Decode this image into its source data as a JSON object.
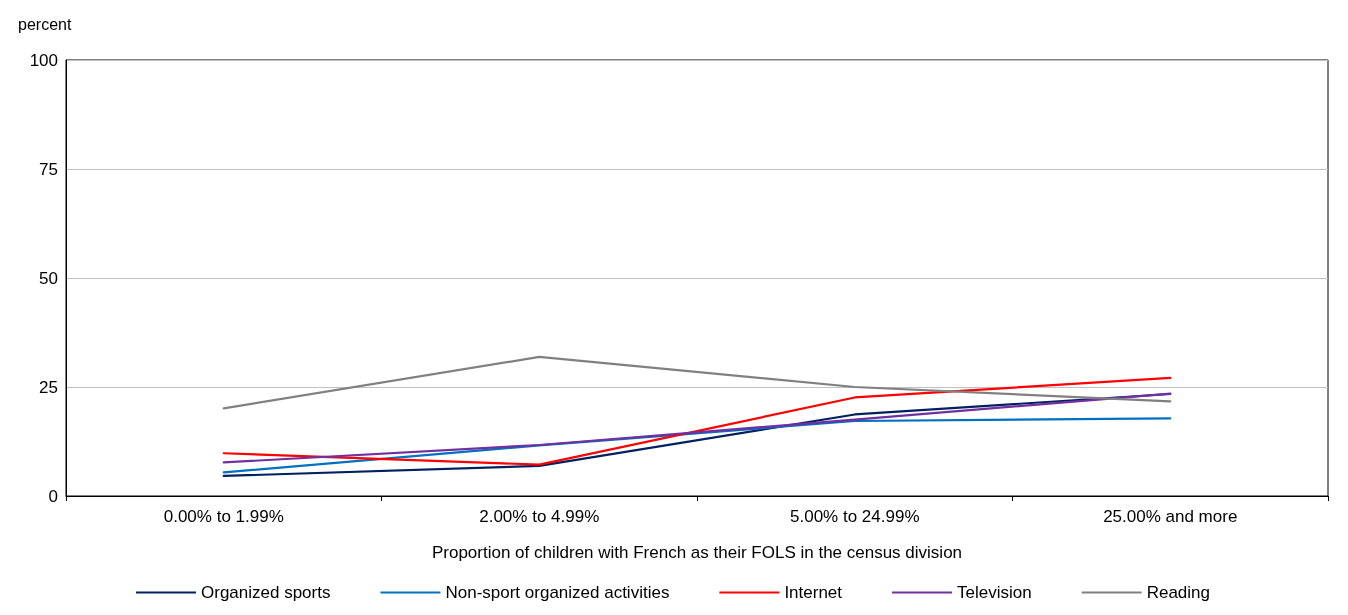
{
  "chart_data": {
    "type": "line",
    "ylabel": "percent",
    "xlabel": "Proportion of children with French as their FOLS in the census division",
    "categories": [
      "0.00% to 1.99%",
      "2.00% to 4.99%",
      "5.00% to 24.99%",
      "25.00% and more"
    ],
    "series": [
      {
        "name": "Organized sports",
        "color": "#002060",
        "values": [
          4.6,
          6.9,
          18.7,
          23.4
        ]
      },
      {
        "name": "Non-sport organized activities",
        "color": "#0070c0",
        "values": [
          5.4,
          11.6,
          17.2,
          17.8
        ]
      },
      {
        "name": "Internet",
        "color": "#ff0000",
        "values": [
          9.8,
          7.2,
          22.6,
          27.1
        ]
      },
      {
        "name": "Television",
        "color": "#7030a0",
        "values": [
          7.7,
          11.7,
          17.5,
          23.5
        ]
      },
      {
        "name": "Reading",
        "color": "#808080",
        "values": [
          20.1,
          31.9,
          25.0,
          21.7
        ]
      }
    ],
    "ylim": [
      0,
      100
    ],
    "yticks": [
      0,
      25,
      50,
      75,
      100
    ],
    "grid": "y",
    "legend": "bottom",
    "marker": "none",
    "line_style": "solid"
  }
}
